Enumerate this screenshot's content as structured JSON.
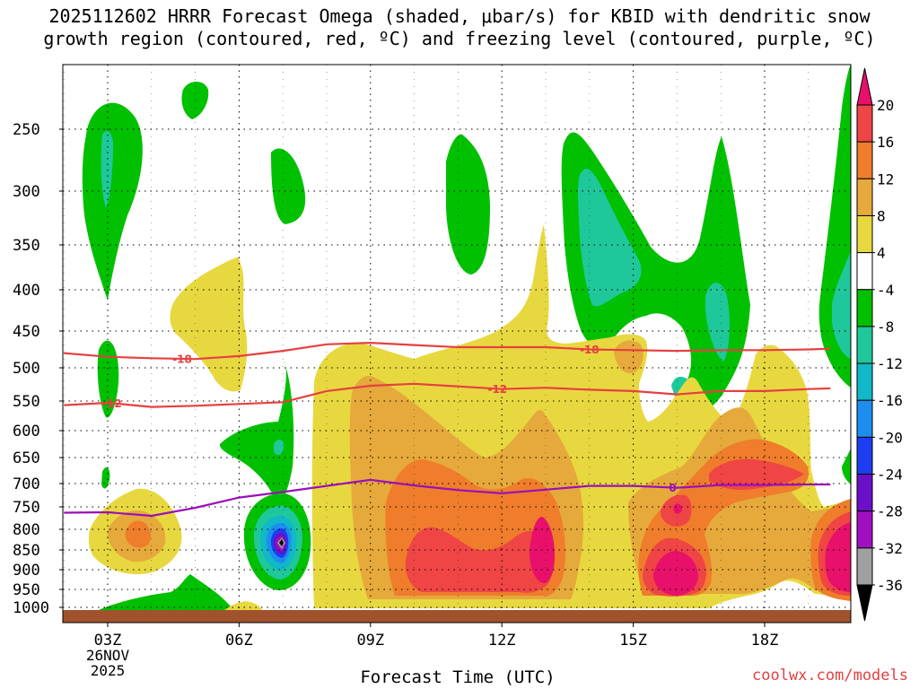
{
  "chart_data": {
    "type": "heatmap",
    "title_line1": "2025112602 HRRR Forecast Omega (shaded, μbar/s) for KBID with dendritic snow",
    "title_line2": "growth region (contoured, red, ºC) and freezing level (contoured, purple, ºC)",
    "xlabel": "Forecast Time (UTC)",
    "ylabel": "",
    "credit": "coolwx.com/models",
    "x_ticks": [
      {
        "hour": 3,
        "label": "03Z"
      },
      {
        "hour": 6,
        "label": "06Z"
      },
      {
        "hour": 9,
        "label": "09Z"
      },
      {
        "hour": 12,
        "label": "12Z"
      },
      {
        "hour": 15,
        "label": "15Z"
      },
      {
        "hour": 18,
        "label": "18Z"
      }
    ],
    "x_date_line1": "26NOV",
    "x_date_line2": "2025",
    "xlim": [
      2,
      19.5
    ],
    "y_ticks": [
      250,
      300,
      350,
      400,
      450,
      500,
      550,
      600,
      650,
      700,
      750,
      800,
      850,
      900,
      950,
      1000
    ],
    "ylim": [
      200,
      1018
    ],
    "terrain_pressure": 1000,
    "colorbar": {
      "levels": [
        20,
        16,
        12,
        8,
        4,
        -4,
        -8,
        -12,
        -16,
        -20,
        -24,
        -28,
        -32,
        -36
      ],
      "colors": [
        {
          "range": ">20",
          "color": "#e8106a"
        },
        {
          "range": "16 to 20",
          "color": "#ef4545"
        },
        {
          "range": "12 to 16",
          "color": "#ef7d2b"
        },
        {
          "range": "8 to 12",
          "color": "#e6a93b"
        },
        {
          "range": "4 to 8",
          "color": "#e8d840"
        },
        {
          "range": "-4 to 4",
          "color": "#ffffff"
        },
        {
          "range": "-8 to -4",
          "color": "#00c000"
        },
        {
          "range": "-12 to -8",
          "color": "#1fc89a"
        },
        {
          "range": "-16 to -12",
          "color": "#10b8c8"
        },
        {
          "range": "-20 to -16",
          "color": "#1c8ef0"
        },
        {
          "range": "-24 to -20",
          "color": "#1c3ef0"
        },
        {
          "range": "-28 to -24",
          "color": "#6a10c8"
        },
        {
          "range": "-32 to -28",
          "color": "#a010c0"
        },
        {
          "range": "-36 to -32",
          "color": "#a0a0a0"
        },
        {
          "range": "<-36",
          "color": "#000000"
        }
      ]
    },
    "isotherms": [
      {
        "name": "-18",
        "label": "-18",
        "color": "#e64040",
        "points": [
          [
            2,
            480
          ],
          [
            3,
            485
          ],
          [
            4,
            487
          ],
          [
            5,
            488
          ],
          [
            6,
            484
          ],
          [
            7,
            477
          ],
          [
            8,
            468
          ],
          [
            9,
            466
          ],
          [
            10,
            469
          ],
          [
            11,
            472
          ],
          [
            12,
            472
          ],
          [
            13,
            472
          ],
          [
            14,
            475
          ],
          [
            15,
            476
          ],
          [
            16,
            477
          ],
          [
            17,
            476
          ],
          [
            18,
            476
          ],
          [
            19,
            475
          ],
          [
            19.5,
            474
          ]
        ],
        "label_positions": [
          4.7,
          14.0
        ]
      },
      {
        "name": "-12",
        "label": "-12",
        "color": "#e64040",
        "points": [
          [
            2,
            557
          ],
          [
            3,
            553
          ],
          [
            4,
            560
          ],
          [
            5,
            558
          ],
          [
            6,
            555
          ],
          [
            7,
            552
          ],
          [
            8,
            535
          ],
          [
            9,
            527
          ],
          [
            10,
            524
          ],
          [
            11,
            528
          ],
          [
            12,
            532
          ],
          [
            13,
            530
          ],
          [
            14,
            533
          ],
          [
            15,
            535
          ],
          [
            16,
            540
          ],
          [
            17,
            535
          ],
          [
            18,
            535
          ],
          [
            19,
            532
          ],
          [
            19.5,
            531
          ]
        ],
        "label_positions": [
          3.1,
          11.9
        ]
      },
      {
        "name": "0",
        "label": "0",
        "color": "#9a10b8",
        "points": [
          [
            2,
            763
          ],
          [
            3,
            762
          ],
          [
            4,
            770
          ],
          [
            5,
            752
          ],
          [
            6,
            730
          ],
          [
            7,
            718
          ],
          [
            8,
            705
          ],
          [
            9,
            693
          ],
          [
            10,
            704
          ],
          [
            11,
            714
          ],
          [
            12,
            721
          ],
          [
            13,
            713
          ],
          [
            14,
            705
          ],
          [
            15,
            705
          ],
          [
            16,
            709
          ],
          [
            17,
            703
          ],
          [
            18,
            703
          ],
          [
            19,
            702
          ],
          [
            19.5,
            702
          ]
        ],
        "label_positions": [
          15.9
        ]
      }
    ],
    "shaded_regions": [
      {
        "name": "upward-core-15z-16z-lowlevel",
        "omega": 20,
        "center_hour": 16.0,
        "center_pressure": 880
      },
      {
        "name": "upward-core-13z-lowlevel",
        "omega": 20,
        "center_hour": 13.0,
        "center_pressure": 830
      },
      {
        "name": "upward-core-19z-lowlevel",
        "omega": 20,
        "center_hour": 19.5,
        "center_pressure": 830
      },
      {
        "name": "upward-max-17z-18z-700mb",
        "omega": 16,
        "center_hour": 17.5,
        "center_pressure": 680
      },
      {
        "name": "upward-broad-11z-13z",
        "omega": 16,
        "center_hour": 11.5,
        "center_pressure": 880
      },
      {
        "name": "upward-03z-04z",
        "omega": 12,
        "center_hour": 3.8,
        "center_pressure": 800
      },
      {
        "name": "downward-core-07z-lowlevel",
        "omega": -36,
        "center_hour": 7.0,
        "center_pressure": 825
      },
      {
        "name": "downward-02z-03z-upper",
        "omega": -12,
        "center_hour": 3.0,
        "center_pressure": 290
      },
      {
        "name": "downward-14z-15z-upper",
        "omega": -12,
        "center_hour": 14.4,
        "center_pressure": 330
      }
    ]
  }
}
